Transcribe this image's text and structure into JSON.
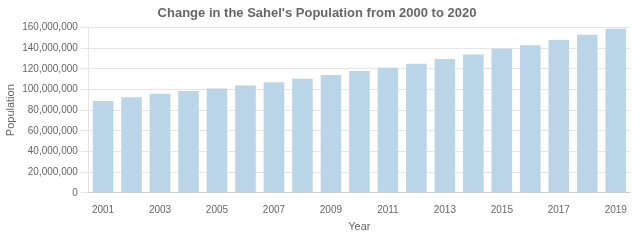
{
  "chart_data": {
    "type": "bar",
    "title": "Change in the Sahel's Population from 2000 to 2020",
    "xlabel": "Year",
    "ylabel": "Population",
    "categories": [
      "2001",
      null,
      "2003",
      null,
      "2005",
      null,
      "2007",
      null,
      "2009",
      null,
      "2011",
      null,
      "2013",
      null,
      "2015",
      null,
      "2017",
      null,
      "2019"
    ],
    "values": [
      89000000,
      92500000,
      96000000,
      98500000,
      101000000,
      104000000,
      107000000,
      110500000,
      114000000,
      118000000,
      121000000,
      125000000,
      129500000,
      134000000,
      139500000,
      143000000,
      148000000,
      153000000,
      159000000
    ],
    "color": "#bad4e8",
    "ylim": [
      0,
      160000000
    ],
    "yticks": [
      0,
      {
        "value": 20000000,
        "label": "20,000,000"
      },
      {
        "value": 40000000,
        "label": "40,000,000"
      },
      {
        "value": 60000000,
        "label": "60,000,000"
      },
      {
        "value": 80000000,
        "label": "80,000,000"
      },
      {
        "value": 100000000,
        "label": "100,000,000"
      },
      {
        "value": 120000000,
        "label": "120,000,000"
      },
      {
        "value": 140000000,
        "label": "140,000,000"
      },
      {
        "value": 160000000,
        "label": "160,000,000"
      }
    ],
    "grid": true
  }
}
